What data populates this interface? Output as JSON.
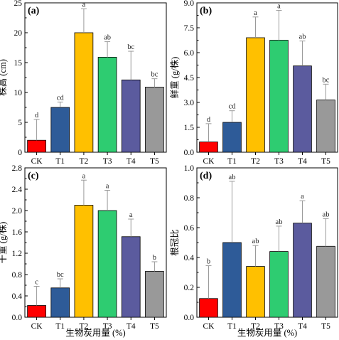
{
  "figure": {
    "xaxis_title": "生物炭用量 (%)"
  },
  "chart_data": [
    {
      "type": "bar",
      "panel": "(a)",
      "title": "",
      "xlabel": "",
      "ylabel": "株高 (cm)",
      "ylim": [
        0,
        25
      ],
      "yticks": [
        "0",
        "5",
        "10",
        "15",
        "20",
        "25"
      ],
      "categories": [
        "CK",
        "T1",
        "T2",
        "T3",
        "T4",
        "T5"
      ],
      "values": [
        2.0,
        7.5,
        20.0,
        15.9,
        12.1,
        10.9
      ],
      "errors": [
        3.5,
        0.9,
        4.0,
        2.6,
        4.8,
        1.4
      ],
      "labels": [
        "d",
        "cd",
        "a",
        "ab",
        "bc",
        "bc"
      ],
      "colors": [
        "#ff0000",
        "#2e5b98",
        "#ffc000",
        "#2ecc71",
        "#5b5b9e",
        "#999999"
      ]
    },
    {
      "type": "bar",
      "panel": "(b)",
      "title": "",
      "xlabel": "",
      "ylabel": "鲜重 (g/株)",
      "ylim": [
        0,
        9.0
      ],
      "yticks": [
        "0.0",
        "1.5",
        "3.0",
        "4.5",
        "6.0",
        "7.5",
        "9.0"
      ],
      "categories": [
        "CK",
        "T1",
        "T2",
        "T3",
        "T4",
        "T5"
      ],
      "values": [
        0.62,
        1.8,
        6.9,
        6.75,
        5.2,
        3.15
      ],
      "errors": [
        1.1,
        0.7,
        1.25,
        1.8,
        1.5,
        0.95
      ],
      "labels": [
        "d",
        "cd",
        "a",
        "a",
        "ab",
        "bc"
      ],
      "colors": [
        "#ff0000",
        "#2e5b98",
        "#ffc000",
        "#2ecc71",
        "#5b5b9e",
        "#999999"
      ]
    },
    {
      "type": "bar",
      "panel": "(c)",
      "title": "",
      "xlabel": "生物炭用量 (%)",
      "ylabel": "干重 (g/株)",
      "ylim": [
        0,
        2.8
      ],
      "yticks": [
        "0.0",
        "0.4",
        "0.8",
        "1.2",
        "1.6",
        "2.0",
        "2.4",
        "2.8"
      ],
      "categories": [
        "CK",
        "T1",
        "T2",
        "T3",
        "T4",
        "T5"
      ],
      "values": [
        0.22,
        0.55,
        2.1,
        2.0,
        1.51,
        0.86
      ],
      "errors": [
        0.36,
        0.17,
        0.47,
        0.38,
        0.33,
        0.18
      ],
      "labels": [
        "c",
        "bc",
        "a",
        "a",
        "a",
        "b"
      ],
      "colors": [
        "#ff0000",
        "#2e5b98",
        "#ffc000",
        "#2ecc71",
        "#5b5b9e",
        "#999999"
      ]
    },
    {
      "type": "bar",
      "panel": "(d)",
      "title": "",
      "xlabel": "生物炭用量 (%)",
      "ylabel": "根冠比",
      "ylim": [
        0,
        1.0
      ],
      "yticks": [
        "0.0",
        "0.2",
        "0.4",
        "0.6",
        "0.8",
        "1.0"
      ],
      "categories": [
        "CK",
        "T1",
        "T2",
        "T3",
        "T4",
        "T5"
      ],
      "values": [
        0.125,
        0.5,
        0.34,
        0.44,
        0.63,
        0.475
      ],
      "errors": [
        0.22,
        0.41,
        0.14,
        0.17,
        0.15,
        0.185
      ],
      "labels": [
        "b",
        "ab",
        "ab",
        "ab",
        "a",
        "ab"
      ],
      "colors": [
        "#ff0000",
        "#2e5b98",
        "#ffc000",
        "#2ecc71",
        "#5b5b9e",
        "#999999"
      ]
    }
  ]
}
